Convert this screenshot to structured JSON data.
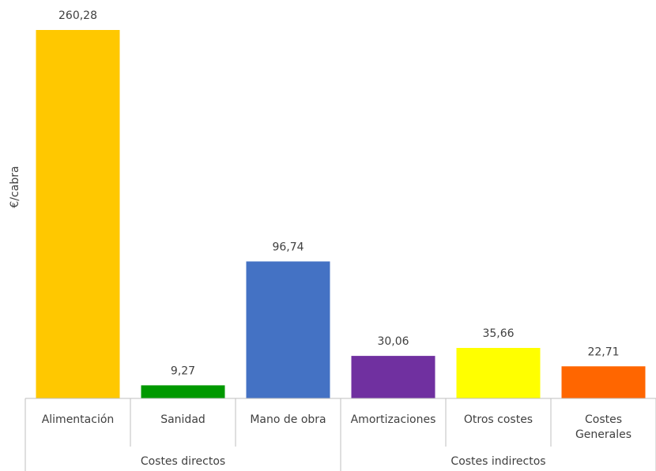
{
  "chart_data": {
    "type": "bar",
    "ylabel": "€/cabra",
    "categories": [
      "Alimentación",
      "Sanidad",
      "Mano de obra",
      "Amortizaciones",
      "Otros costes",
      "Costes Generales"
    ],
    "category_lines": [
      [
        "Alimentación"
      ],
      [
        "Sanidad"
      ],
      [
        "Mano de obra"
      ],
      [
        "Amortizaciones"
      ],
      [
        "Otros costes"
      ],
      [
        "Costes",
        "Generales"
      ]
    ],
    "values": [
      260.28,
      9.27,
      96.74,
      30.06,
      35.66,
      22.71
    ],
    "data_labels": [
      "260,28",
      "9,27",
      "96,74",
      "30,06",
      "35,66",
      "22,71"
    ],
    "colors": [
      "#FFC800",
      "#009900",
      "#4472C4",
      "#7030A0",
      "#FFFF00",
      "#FF6600"
    ],
    "groups": [
      {
        "label": "Costes directos",
        "categories": [
          0,
          1,
          2
        ]
      },
      {
        "label": "Costes indirectos",
        "categories": [
          3,
          4,
          5
        ]
      }
    ],
    "ylim": [
      0,
      260.28
    ],
    "grid": false,
    "legend": "none"
  }
}
